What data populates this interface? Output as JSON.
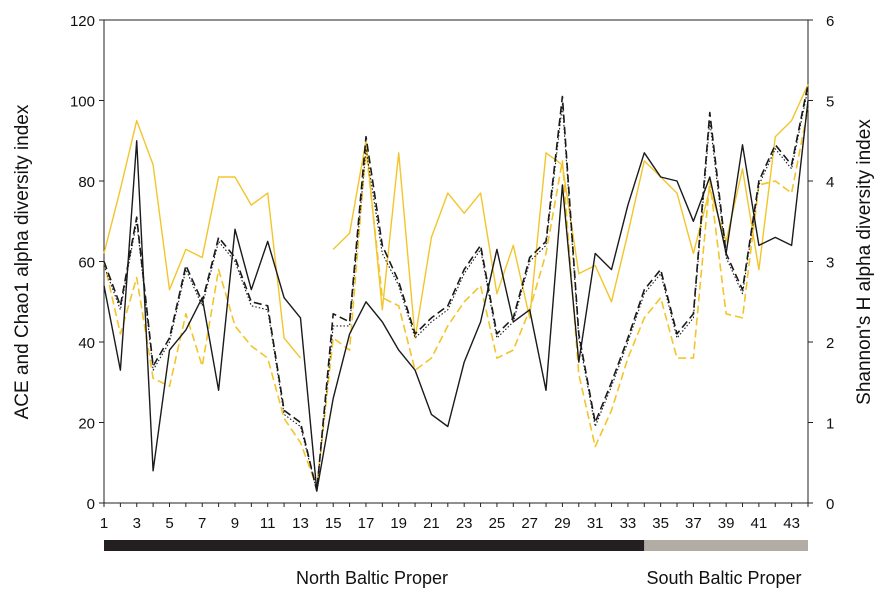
{
  "chart_data": {
    "type": "line",
    "xlabel": "",
    "ylabel": "ACE and Chao1 alpha diversity index",
    "y2label": "Shannon's H alpha diversity index",
    "ylim": [
      0,
      120
    ],
    "y2lim": [
      0,
      6
    ],
    "yticks": [
      "0",
      "20",
      "40",
      "60",
      "80",
      "100",
      "120"
    ],
    "y2ticks": [
      "0",
      "1",
      "2",
      "3",
      "4",
      "5",
      "6"
    ],
    "xlim": [
      1,
      44
    ],
    "xticks": [
      "1",
      "3",
      "5",
      "7",
      "9",
      "11",
      "13",
      "15",
      "17",
      "19",
      "21",
      "23",
      "25",
      "27",
      "29",
      "31",
      "33",
      "35",
      "37",
      "39",
      "41",
      "43"
    ],
    "grid": false,
    "colors": {
      "yellow": "#f2c52b",
      "black": "#1a1a1a",
      "north_bar": "#231f20",
      "south_bar": "#b3aca4"
    },
    "regions": [
      {
        "label": "North Baltic Proper",
        "from": 1,
        "to": 34
      },
      {
        "label": "South Baltic Proper",
        "from": 34,
        "to": 44
      }
    ],
    "series": [
      {
        "axis": "left",
        "color": "#f2c52b",
        "style": "solid",
        "x": [
          1,
          2,
          3,
          4,
          5,
          6,
          7,
          8,
          9,
          10,
          11,
          12,
          13,
          null,
          15,
          16,
          17,
          18,
          19,
          20,
          21,
          22,
          23,
          24,
          25,
          26,
          27,
          28,
          29,
          30,
          31,
          32,
          33,
          34,
          35,
          36,
          37,
          38,
          39,
          40,
          41,
          42,
          43,
          44
        ],
        "values": [
          62,
          78,
          95,
          84,
          53,
          63,
          61,
          81,
          81,
          74,
          77,
          41,
          36,
          null,
          63,
          67,
          90,
          48,
          87,
          41,
          66,
          77,
          72,
          77,
          52,
          64,
          46,
          87,
          84,
          57,
          59,
          50,
          67,
          85,
          81,
          77,
          62,
          78,
          65,
          83,
          58,
          91,
          95,
          104
        ]
      },
      {
        "axis": "left",
        "color": "#1a1a1a",
        "style": "solid",
        "x": [
          1,
          2,
          3,
          4,
          5,
          6,
          7,
          8,
          9,
          10,
          11,
          12,
          13,
          14,
          15,
          16,
          17,
          18,
          19,
          20,
          21,
          22,
          23,
          24,
          25,
          26,
          27,
          28,
          29,
          30,
          31,
          32,
          33,
          34,
          35,
          36,
          37,
          38,
          39,
          40,
          41,
          42,
          43,
          44
        ],
        "values": [
          54,
          33,
          90,
          8,
          38,
          43,
          51,
          28,
          68,
          53,
          65,
          51,
          46,
          3,
          26,
          42,
          50,
          45,
          38,
          33,
          22,
          19,
          35,
          45,
          63,
          45,
          48,
          28,
          79,
          35,
          62,
          58,
          74,
          87,
          81,
          80,
          70,
          81,
          62,
          89,
          64,
          66,
          64,
          100
        ]
      },
      {
        "axis": "right",
        "color": "#1a1a1a",
        "style": "dashed",
        "x": [
          1,
          2,
          3,
          4,
          5,
          6,
          7,
          8,
          9,
          10,
          11,
          12,
          13,
          14,
          15,
          16,
          17,
          18,
          19,
          20,
          21,
          22,
          23,
          24,
          25,
          26,
          27,
          28,
          29,
          30,
          31,
          32,
          33,
          34,
          35,
          36,
          37,
          38,
          39,
          40,
          41,
          42,
          43,
          44
        ],
        "values": [
          3.0,
          2.45,
          3.55,
          1.7,
          2.05,
          2.95,
          2.5,
          3.3,
          3.05,
          2.5,
          2.45,
          1.15,
          1.0,
          0.15,
          2.35,
          2.25,
          4.55,
          3.2,
          2.75,
          2.1,
          2.3,
          2.45,
          2.9,
          3.2,
          2.1,
          2.3,
          3.05,
          3.25,
          5.05,
          2.1,
          1.0,
          1.5,
          2.05,
          2.65,
          2.9,
          2.1,
          2.35,
          4.85,
          3.1,
          2.65,
          4.0,
          4.45,
          4.2,
          5.2
        ]
      },
      {
        "axis": "right",
        "color": "#1a1a1a",
        "style": "dotted",
        "x": [
          1,
          2,
          3,
          4,
          5,
          6,
          7,
          8,
          9,
          10,
          11,
          12,
          13,
          14,
          15,
          16,
          17,
          18,
          19,
          20,
          21,
          22,
          23,
          24,
          25,
          26,
          27,
          28,
          29,
          30,
          31,
          32,
          33,
          34,
          35,
          36,
          37,
          38,
          39,
          40,
          41,
          42,
          43,
          44
        ],
        "values": [
          2.95,
          2.4,
          3.5,
          1.65,
          2.0,
          2.9,
          2.45,
          3.25,
          3.0,
          2.45,
          2.4,
          1.1,
          0.95,
          0.15,
          2.2,
          2.2,
          4.4,
          3.1,
          2.7,
          2.05,
          2.25,
          2.4,
          2.85,
          3.15,
          2.05,
          2.25,
          3.0,
          3.2,
          4.95,
          2.05,
          0.95,
          1.45,
          2.0,
          2.6,
          2.85,
          2.05,
          2.3,
          4.75,
          3.05,
          2.6,
          3.95,
          4.4,
          4.15,
          5.15
        ]
      },
      {
        "axis": "right",
        "color": "#f2c52b",
        "style": "dashed",
        "x": [
          1,
          2,
          3,
          4,
          5,
          6,
          7,
          8,
          9,
          10,
          11,
          12,
          13,
          14,
          15,
          16,
          17,
          18,
          19,
          20,
          21,
          22,
          23,
          24,
          25,
          26,
          27,
          28,
          29,
          30,
          31,
          32,
          33,
          34,
          35,
          36,
          37,
          38,
          39,
          40,
          41,
          42,
          43,
          44
        ],
        "values": [
          3.0,
          2.1,
          2.8,
          1.55,
          1.45,
          2.35,
          1.7,
          2.9,
          2.2,
          1.95,
          1.8,
          1.05,
          0.75,
          0.2,
          2.05,
          1.9,
          4.4,
          2.55,
          2.45,
          1.65,
          1.8,
          2.2,
          2.5,
          2.7,
          1.8,
          1.9,
          2.4,
          3.1,
          4.25,
          1.6,
          0.7,
          1.15,
          1.8,
          2.3,
          2.55,
          1.8,
          1.8,
          4.0,
          2.35,
          2.3,
          3.95,
          4.0,
          3.85,
          4.9
        ]
      }
    ]
  }
}
